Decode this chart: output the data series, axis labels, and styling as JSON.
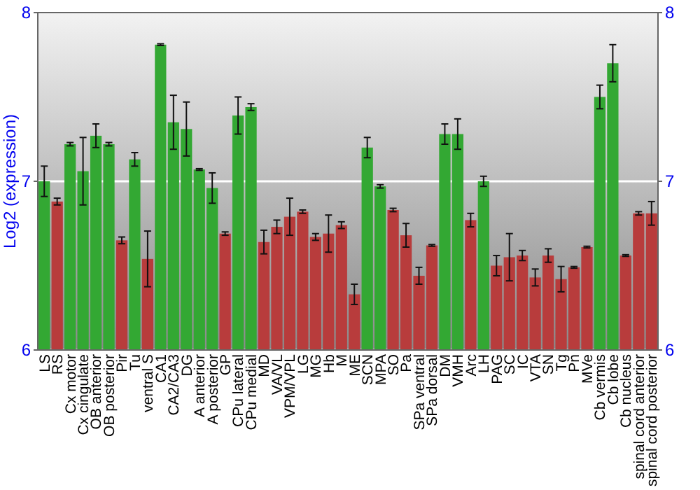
{
  "chart_data": {
    "type": "bar",
    "ylabel": "Log2 (expression)",
    "categories": [
      "LS",
      "RS",
      "Cx motor",
      "Cx cingulate",
      "OB anterior",
      "OB posterior",
      "Pir",
      "Tu",
      "ventral S",
      "CA1",
      "CA2/CA3",
      "DG",
      "A anterior",
      "A posterior",
      "GP",
      "CPu lateral",
      "CPu medial",
      "MD",
      "VA/VL",
      "VPM/VPL",
      "LG",
      "MG",
      "Hb",
      "M",
      "ME",
      "SCN",
      "MPA",
      "SO",
      "Pa",
      "SPa ventral",
      "SPa dorsal",
      "DM",
      "VMH",
      "Arc",
      "LH",
      "PAG",
      "SC",
      "IC",
      "VTA",
      "SN",
      "Tg",
      "Pn",
      "MVe",
      "Cb vermis",
      "Cb lobe",
      "Cb nucleus",
      "spinal cord anterior",
      "spinal cord posterior"
    ],
    "values": [
      7.0,
      6.88,
      7.22,
      7.06,
      7.27,
      7.22,
      6.65,
      7.13,
      6.54,
      7.81,
      7.35,
      7.31,
      7.07,
      6.96,
      6.69,
      7.39,
      7.44,
      6.64,
      6.73,
      6.79,
      6.82,
      6.67,
      6.69,
      6.74,
      6.33,
      7.2,
      6.97,
      6.83,
      6.68,
      6.44,
      6.62,
      7.28,
      7.28,
      6.77,
      7.0,
      6.5,
      6.55,
      6.56,
      6.43,
      6.56,
      6.42,
      6.49,
      6.61,
      7.5,
      7.7,
      6.56,
      6.81,
      6.81
    ],
    "errors": [
      0.09,
      0.02,
      0.01,
      0.2,
      0.07,
      0.01,
      0.02,
      0.04,
      0.165,
      0.005,
      0.16,
      0.16,
      0.005,
      0.09,
      0.01,
      0.11,
      0.02,
      0.07,
      0.04,
      0.11,
      0.01,
      0.02,
      0.11,
      0.02,
      0.06,
      0.06,
      0.01,
      0.01,
      0.07,
      0.05,
      0.005,
      0.06,
      0.09,
      0.04,
      0.03,
      0.06,
      0.14,
      0.03,
      0.05,
      0.04,
      0.075,
      0.005,
      0.005,
      0.07,
      0.11,
      0.005,
      0.01,
      0.07
    ],
    "colors": [
      "#33a833",
      "#b83c3c",
      "#33a833",
      "#33a833",
      "#33a833",
      "#33a833",
      "#b83c3c",
      "#33a833",
      "#b83c3c",
      "#33a833",
      "#33a833",
      "#33a833",
      "#33a833",
      "#33a833",
      "#b83c3c",
      "#33a833",
      "#33a833",
      "#b83c3c",
      "#b83c3c",
      "#b83c3c",
      "#b83c3c",
      "#b83c3c",
      "#b83c3c",
      "#b83c3c",
      "#b83c3c",
      "#33a833",
      "#33a833",
      "#b83c3c",
      "#b83c3c",
      "#b83c3c",
      "#b83c3c",
      "#33a833",
      "#33a833",
      "#b83c3c",
      "#33a833",
      "#b83c3c",
      "#b83c3c",
      "#b83c3c",
      "#b83c3c",
      "#b83c3c",
      "#b83c3c",
      "#b83c3c",
      "#b83c3c",
      "#33a833",
      "#33a833",
      "#b83c3c",
      "#b83c3c",
      "#b83c3c"
    ],
    "ylim": [
      6,
      8
    ],
    "yticks": [
      6,
      7,
      8
    ],
    "y2lim": [
      6,
      8
    ],
    "y2ticks": [
      6,
      7,
      8
    ],
    "grid": "y"
  }
}
